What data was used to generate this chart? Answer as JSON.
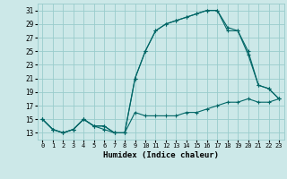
{
  "xlabel": "Humidex (Indice chaleur)",
  "bg_color": "#cce8e8",
  "grid_color": "#99cccc",
  "line_color": "#006666",
  "xlim": [
    -0.5,
    23.5
  ],
  "ylim": [
    12,
    32
  ],
  "xticks": [
    0,
    1,
    2,
    3,
    4,
    5,
    6,
    7,
    8,
    9,
    10,
    11,
    12,
    13,
    14,
    15,
    16,
    17,
    18,
    19,
    20,
    21,
    22,
    23
  ],
  "yticks": [
    13,
    15,
    17,
    19,
    21,
    23,
    25,
    27,
    29,
    31
  ],
  "series1_x": [
    0,
    1,
    2,
    3,
    4,
    5,
    6,
    7,
    8,
    9,
    10,
    11,
    12,
    13,
    14,
    15,
    16,
    17,
    18,
    19,
    20,
    21,
    22,
    23
  ],
  "series1_y": [
    15,
    13.5,
    13,
    13.5,
    15,
    14,
    13.5,
    13,
    13,
    16,
    15.5,
    15.5,
    15.5,
    15.5,
    16,
    16,
    16.5,
    17,
    17.5,
    17.5,
    18,
    17.5,
    17.5,
    18
  ],
  "series2_x": [
    0,
    1,
    2,
    3,
    4,
    5,
    6,
    7,
    8,
    9,
    10,
    11,
    12,
    13,
    14,
    15,
    16,
    17,
    18,
    19,
    20,
    21,
    22,
    23
  ],
  "series2_y": [
    15,
    13.5,
    13,
    13.5,
    15,
    14,
    14,
    13,
    13,
    21,
    25,
    28,
    29,
    29.5,
    30,
    30.5,
    31,
    31,
    28,
    28,
    25,
    20,
    19.5,
    18
  ],
  "series3_x": [
    0,
    1,
    2,
    3,
    4,
    5,
    6,
    7,
    8,
    9,
    10,
    11,
    12,
    13,
    14,
    15,
    16,
    17,
    18,
    19,
    20,
    21,
    22,
    23
  ],
  "series3_y": [
    15,
    13.5,
    13,
    13.5,
    15,
    14,
    14,
    13,
    13,
    21,
    25,
    28,
    29,
    29.5,
    30,
    30.5,
    31,
    31,
    28.5,
    28,
    24.5,
    20,
    19.5,
    18
  ]
}
